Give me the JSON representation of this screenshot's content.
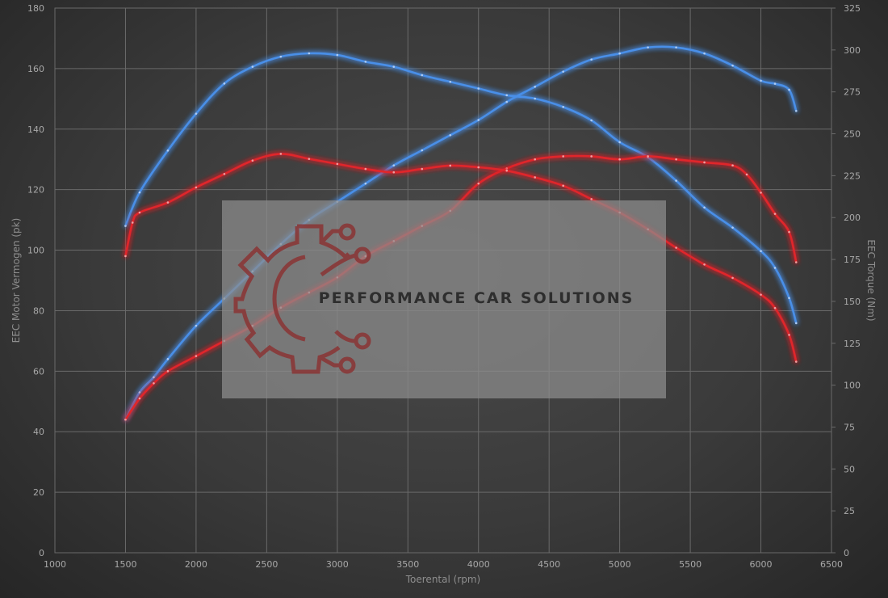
{
  "chart_data": {
    "type": "line",
    "xlabel": "Toerental (rpm)",
    "ylabel_left": "EEC Motor Vermogen (pk)",
    "ylabel_right": "EEC Torque (Nm)",
    "xlim": [
      1000,
      6500
    ],
    "ylim_left": [
      0,
      180
    ],
    "ylim_right": [
      0,
      325
    ],
    "x_ticks": [
      1000,
      1500,
      2000,
      2500,
      3000,
      3500,
      4000,
      4500,
      5000,
      5500,
      6000,
      6500
    ],
    "y_ticks_left": [
      0,
      20,
      40,
      60,
      80,
      100,
      120,
      140,
      160,
      180
    ],
    "y_ticks_right": [
      0,
      25,
      50,
      75,
      100,
      125,
      150,
      175,
      200,
      225,
      250,
      275,
      300,
      325
    ],
    "grid": true,
    "series": [
      {
        "color": "#4a8fe8",
        "axis": "left",
        "points": [
          [
            1500,
            44
          ],
          [
            1600,
            53
          ],
          [
            1700,
            58
          ],
          [
            1800,
            64
          ],
          [
            2000,
            75
          ],
          [
            2200,
            84
          ],
          [
            2400,
            93
          ],
          [
            2600,
            102
          ],
          [
            2800,
            110
          ],
          [
            3000,
            116
          ],
          [
            3200,
            122
          ],
          [
            3400,
            128
          ],
          [
            3600,
            133
          ],
          [
            3800,
            138
          ],
          [
            4000,
            143
          ],
          [
            4200,
            149
          ],
          [
            4400,
            154
          ],
          [
            4600,
            159
          ],
          [
            4800,
            163
          ],
          [
            5000,
            165
          ],
          [
            5200,
            167
          ],
          [
            5400,
            167
          ],
          [
            5600,
            165
          ],
          [
            5800,
            161
          ],
          [
            6000,
            156
          ],
          [
            6100,
            155
          ],
          [
            6200,
            153
          ],
          [
            6250,
            146
          ]
        ]
      },
      {
        "color": "#4a8fe8",
        "axis": "right",
        "points": [
          [
            1500,
            195
          ],
          [
            1600,
            215
          ],
          [
            1800,
            240
          ],
          [
            2000,
            262
          ],
          [
            2200,
            280
          ],
          [
            2400,
            290
          ],
          [
            2600,
            296
          ],
          [
            2800,
            298
          ],
          [
            3000,
            297
          ],
          [
            3200,
            293
          ],
          [
            3400,
            290
          ],
          [
            3600,
            285
          ],
          [
            3800,
            281
          ],
          [
            4000,
            277
          ],
          [
            4200,
            273
          ],
          [
            4400,
            271
          ],
          [
            4600,
            266
          ],
          [
            4800,
            258
          ],
          [
            5000,
            245
          ],
          [
            5200,
            236
          ],
          [
            5400,
            222
          ],
          [
            5600,
            206
          ],
          [
            5800,
            194
          ],
          [
            6000,
            180
          ],
          [
            6100,
            170
          ],
          [
            6200,
            152
          ],
          [
            6250,
            137
          ]
        ]
      },
      {
        "color": "#e0262c",
        "axis": "left",
        "points": [
          [
            1500,
            44
          ],
          [
            1600,
            51
          ],
          [
            1700,
            56
          ],
          [
            1800,
            60
          ],
          [
            2000,
            65
          ],
          [
            2200,
            70
          ],
          [
            2400,
            75
          ],
          [
            2600,
            81
          ],
          [
            2800,
            86
          ],
          [
            3000,
            91
          ],
          [
            3200,
            98
          ],
          [
            3400,
            103
          ],
          [
            3600,
            108
          ],
          [
            3800,
            113
          ],
          [
            4000,
            122
          ],
          [
            4200,
            127
          ],
          [
            4400,
            130
          ],
          [
            4600,
            131
          ],
          [
            4800,
            131
          ],
          [
            5000,
            130
          ],
          [
            5200,
            131
          ],
          [
            5400,
            130
          ],
          [
            5600,
            129
          ],
          [
            5800,
            128
          ],
          [
            5900,
            125
          ],
          [
            6000,
            119
          ],
          [
            6100,
            112
          ],
          [
            6200,
            106
          ],
          [
            6250,
            96
          ]
        ]
      },
      {
        "color": "#e0262c",
        "axis": "right",
        "points": [
          [
            1500,
            177
          ],
          [
            1550,
            197
          ],
          [
            1600,
            203
          ],
          [
            1800,
            209
          ],
          [
            2000,
            218
          ],
          [
            2200,
            226
          ],
          [
            2400,
            234
          ],
          [
            2600,
            238
          ],
          [
            2800,
            235
          ],
          [
            3000,
            232
          ],
          [
            3200,
            229
          ],
          [
            3400,
            227
          ],
          [
            3600,
            229
          ],
          [
            3800,
            231
          ],
          [
            4000,
            230
          ],
          [
            4200,
            228
          ],
          [
            4400,
            224
          ],
          [
            4600,
            219
          ],
          [
            4800,
            211
          ],
          [
            5000,
            203
          ],
          [
            5200,
            193
          ],
          [
            5400,
            182
          ],
          [
            5600,
            172
          ],
          [
            5800,
            164
          ],
          [
            6000,
            154
          ],
          [
            6100,
            146
          ],
          [
            6200,
            130
          ],
          [
            6250,
            114
          ]
        ]
      }
    ]
  },
  "watermark": {
    "text": "PERFORMANCE CAR SOLUTIONS",
    "panel_color": "#8e8e8e",
    "logo_color": "#8a3434"
  }
}
